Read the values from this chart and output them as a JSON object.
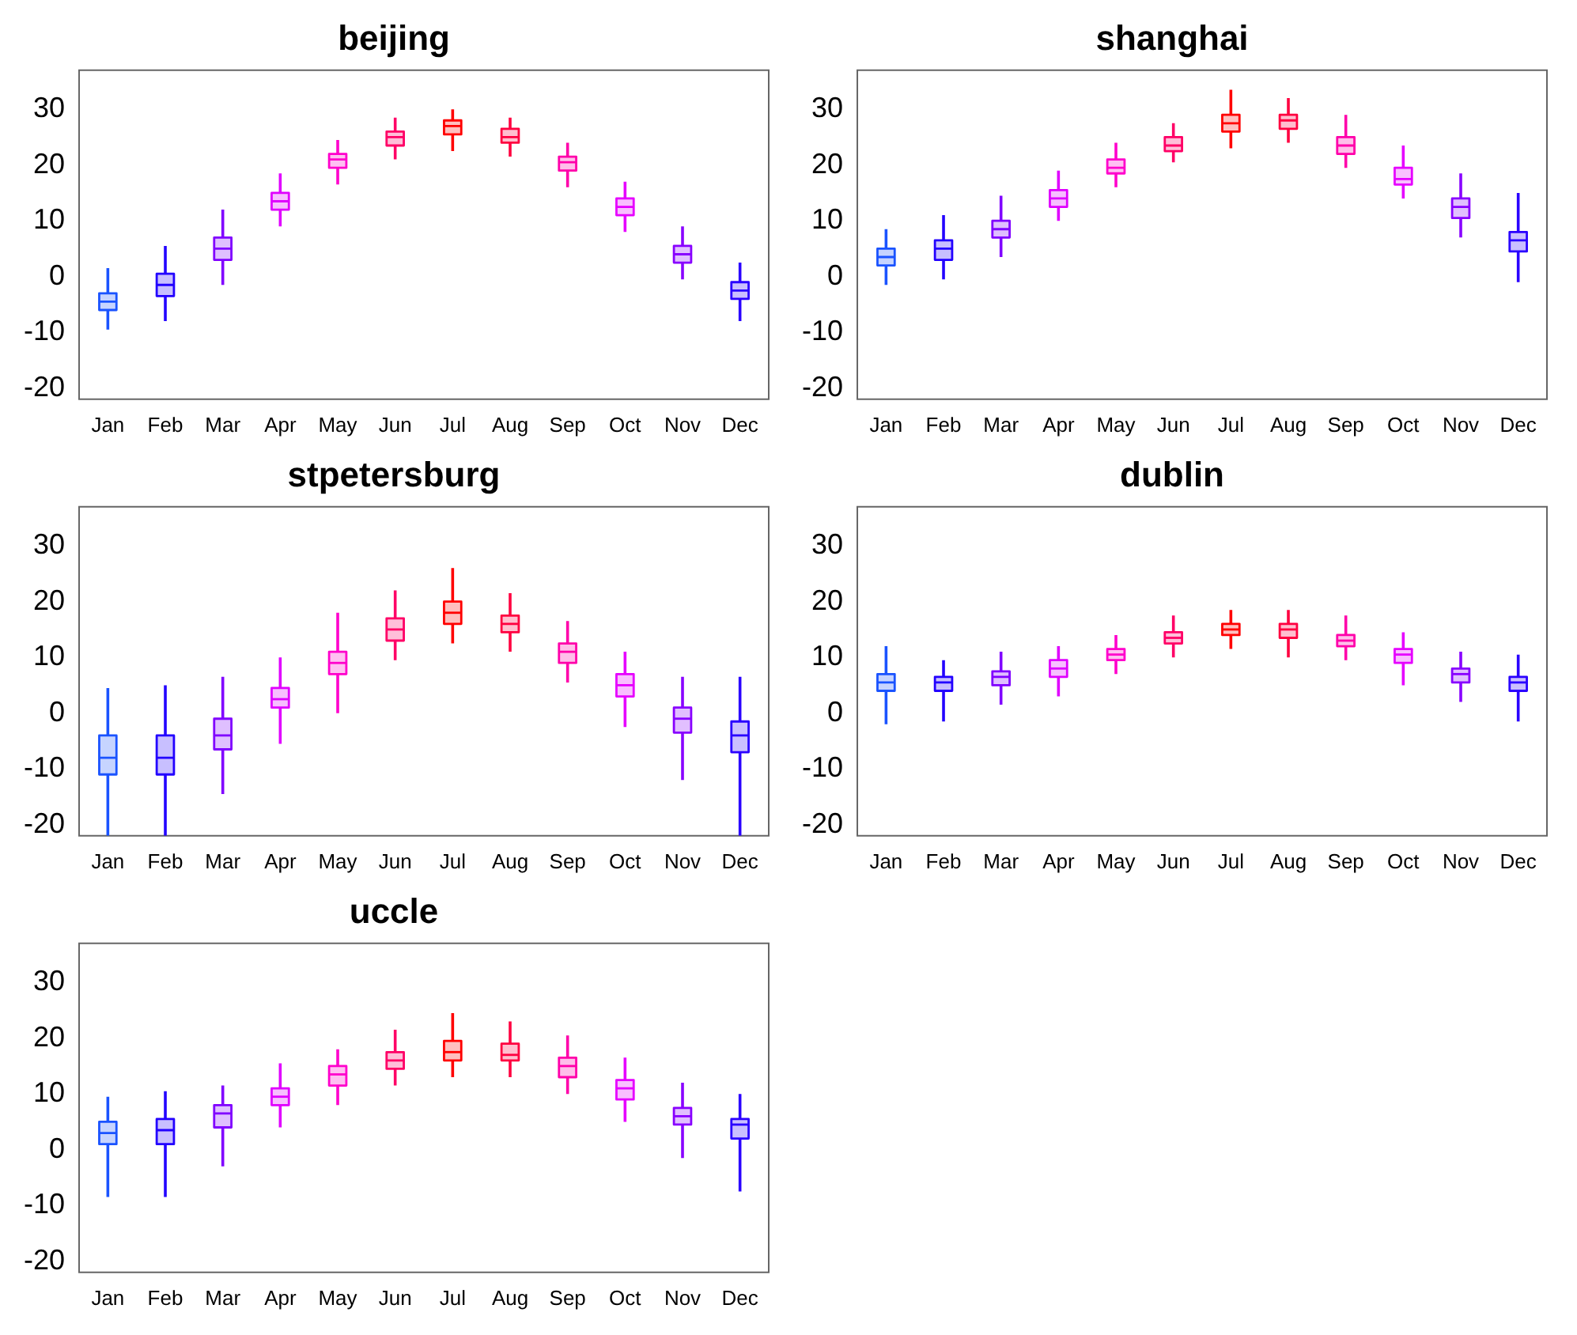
{
  "chart_data": [
    {
      "type": "box",
      "title": "beijing",
      "categories": [
        "Jan",
        "Feb",
        "Mar",
        "Apr",
        "May",
        "Jun",
        "Jul",
        "Aug",
        "Sep",
        "Oct",
        "Nov",
        "Dec"
      ],
      "colors": [
        "#1a53ff",
        "#2200ff",
        "#8000ff",
        "#e000ff",
        "#ff00cc",
        "#ff0066",
        "#ff0000",
        "#ff0040",
        "#ff00aa",
        "#e600ff",
        "#8800ff",
        "#2a00ff"
      ],
      "ylim": [
        -22,
        37
      ],
      "yticks": [
        -20,
        -10,
        0,
        10,
        20,
        30
      ],
      "grid": false,
      "boxes": [
        {
          "low": -9.5,
          "q1": -6,
          "median": -4.5,
          "q3": -3,
          "high": 1.5
        },
        {
          "low": -8,
          "q1": -3.5,
          "median": -1.5,
          "q3": 0.5,
          "high": 5.5
        },
        {
          "low": -1.5,
          "q1": 3,
          "median": 5,
          "q3": 7,
          "high": 12
        },
        {
          "low": 9,
          "q1": 12,
          "median": 13.5,
          "q3": 15,
          "high": 18.5
        },
        {
          "low": 16.5,
          "q1": 19.5,
          "median": 21,
          "q3": 22,
          "high": 24.5
        },
        {
          "low": 21,
          "q1": 23.5,
          "median": 25,
          "q3": 26,
          "high": 28.5
        },
        {
          "low": 22.5,
          "q1": 25.5,
          "median": 27,
          "q3": 28,
          "high": 30
        },
        {
          "low": 21.5,
          "q1": 24,
          "median": 25,
          "q3": 26.5,
          "high": 28.5
        },
        {
          "low": 16,
          "q1": 19,
          "median": 20.5,
          "q3": 21.5,
          "high": 24
        },
        {
          "low": 8,
          "q1": 11,
          "median": 12.5,
          "q3": 14,
          "high": 17
        },
        {
          "low": -0.5,
          "q1": 2.5,
          "median": 4,
          "q3": 5.5,
          "high": 9
        },
        {
          "low": -8,
          "q1": -4,
          "median": -2.5,
          "q3": -1,
          "high": 2.5
        }
      ]
    },
    {
      "type": "box",
      "title": "shanghai",
      "categories": [
        "Jan",
        "Feb",
        "Mar",
        "Apr",
        "May",
        "Jun",
        "Jul",
        "Aug",
        "Sep",
        "Oct",
        "Nov",
        "Dec"
      ],
      "colors": [
        "#1a53ff",
        "#2200ff",
        "#8000ff",
        "#e000ff",
        "#ff00cc",
        "#ff0066",
        "#ff0000",
        "#ff0040",
        "#ff00aa",
        "#e600ff",
        "#8800ff",
        "#2a00ff"
      ],
      "ylim": [
        -22,
        37
      ],
      "yticks": [
        -20,
        -10,
        0,
        10,
        20,
        30
      ],
      "grid": false,
      "boxes": [
        {
          "low": -1.5,
          "q1": 2,
          "median": 3.5,
          "q3": 5,
          "high": 8.5
        },
        {
          "low": -0.5,
          "q1": 3,
          "median": 5,
          "q3": 6.5,
          "high": 11
        },
        {
          "low": 3.5,
          "q1": 7,
          "median": 8.5,
          "q3": 10,
          "high": 14.5
        },
        {
          "low": 10,
          "q1": 12.5,
          "median": 14,
          "q3": 15.5,
          "high": 19
        },
        {
          "low": 16,
          "q1": 18.5,
          "median": 19.5,
          "q3": 21,
          "high": 24
        },
        {
          "low": 20.5,
          "q1": 22.5,
          "median": 23.5,
          "q3": 25,
          "high": 27.5
        },
        {
          "low": 23,
          "q1": 26,
          "median": 27.5,
          "q3": 29,
          "high": 33.5
        },
        {
          "low": 24,
          "q1": 26.5,
          "median": 28,
          "q3": 29,
          "high": 32
        },
        {
          "low": 19.5,
          "q1": 22,
          "median": 23.5,
          "q3": 25,
          "high": 29
        },
        {
          "low": 14,
          "q1": 16.5,
          "median": 17.5,
          "q3": 19.5,
          "high": 23.5
        },
        {
          "low": 7,
          "q1": 10.5,
          "median": 12.5,
          "q3": 14,
          "high": 18.5
        },
        {
          "low": -1,
          "q1": 4.5,
          "median": 6.5,
          "q3": 8,
          "high": 15
        }
      ]
    },
    {
      "type": "box",
      "title": "stpetersburg",
      "categories": [
        "Jan",
        "Feb",
        "Mar",
        "Apr",
        "May",
        "Jun",
        "Jul",
        "Aug",
        "Sep",
        "Oct",
        "Nov",
        "Dec"
      ],
      "colors": [
        "#1a53ff",
        "#2200ff",
        "#8000ff",
        "#e000ff",
        "#ff00cc",
        "#ff0066",
        "#ff0000",
        "#ff0040",
        "#ff00aa",
        "#e600ff",
        "#8800ff",
        "#2a00ff"
      ],
      "ylim": [
        -22,
        37
      ],
      "yticks": [
        -20,
        -10,
        0,
        10,
        20,
        30
      ],
      "grid": false,
      "boxes": [
        {
          "low": -22,
          "q1": -11,
          "median": -8,
          "q3": -4,
          "high": 4.5
        },
        {
          "low": -22,
          "q1": -11,
          "median": -8,
          "q3": -4,
          "high": 5
        },
        {
          "low": -14.5,
          "q1": -6.5,
          "median": -4,
          "q3": -1,
          "high": 6.5
        },
        {
          "low": -5.5,
          "q1": 1,
          "median": 2.5,
          "q3": 4.5,
          "high": 10
        },
        {
          "low": 0,
          "q1": 7,
          "median": 9,
          "q3": 11,
          "high": 18
        },
        {
          "low": 9.5,
          "q1": 13,
          "median": 15,
          "q3": 17,
          "high": 22
        },
        {
          "low": 12.5,
          "q1": 16,
          "median": 18,
          "q3": 20,
          "high": 26
        },
        {
          "low": 11,
          "q1": 14.5,
          "median": 16,
          "q3": 17.5,
          "high": 21.5
        },
        {
          "low": 5.5,
          "q1": 9,
          "median": 11,
          "q3": 12.5,
          "high": 16.5
        },
        {
          "low": -2.5,
          "q1": 3,
          "median": 5,
          "q3": 7,
          "high": 11
        },
        {
          "low": -12,
          "q1": -3.5,
          "median": -1,
          "q3": 1,
          "high": 6.5
        },
        {
          "low": -22,
          "q1": -7,
          "median": -4,
          "q3": -1.5,
          "high": 6.5
        }
      ]
    },
    {
      "type": "box",
      "title": "dublin",
      "categories": [
        "Jan",
        "Feb",
        "Mar",
        "Apr",
        "May",
        "Jun",
        "Jul",
        "Aug",
        "Sep",
        "Oct",
        "Nov",
        "Dec"
      ],
      "colors": [
        "#1a53ff",
        "#2200ff",
        "#8000ff",
        "#e000ff",
        "#ff00cc",
        "#ff0066",
        "#ff0000",
        "#ff0040",
        "#ff00aa",
        "#e600ff",
        "#8800ff",
        "#2a00ff"
      ],
      "ylim": [
        -22,
        37
      ],
      "yticks": [
        -20,
        -10,
        0,
        10,
        20,
        30
      ],
      "grid": false,
      "boxes": [
        {
          "low": -2,
          "q1": 4,
          "median": 5.5,
          "q3": 7,
          "high": 12
        },
        {
          "low": -1.5,
          "q1": 4,
          "median": 5.5,
          "q3": 6.5,
          "high": 9.5
        },
        {
          "low": 1.5,
          "q1": 5,
          "median": 6.5,
          "q3": 7.5,
          "high": 11
        },
        {
          "low": 3,
          "q1": 6.5,
          "median": 8,
          "q3": 9.5,
          "high": 12
        },
        {
          "low": 7,
          "q1": 9.5,
          "median": 10.5,
          "q3": 11.5,
          "high": 14
        },
        {
          "low": 10,
          "q1": 12.5,
          "median": 13.5,
          "q3": 14.5,
          "high": 17.5
        },
        {
          "low": 11.5,
          "q1": 14,
          "median": 15,
          "q3": 16,
          "high": 18.5
        },
        {
          "low": 10,
          "q1": 13.5,
          "median": 15,
          "q3": 16,
          "high": 18.5
        },
        {
          "low": 9.5,
          "q1": 12,
          "median": 13,
          "q3": 14,
          "high": 17.5
        },
        {
          "low": 5,
          "q1": 9,
          "median": 10.5,
          "q3": 11.5,
          "high": 14.5
        },
        {
          "low": 2,
          "q1": 5.5,
          "median": 7,
          "q3": 8,
          "high": 11
        },
        {
          "low": -1.5,
          "q1": 4,
          "median": 5.5,
          "q3": 6.5,
          "high": 10.5
        }
      ]
    },
    {
      "type": "box",
      "title": "uccle",
      "categories": [
        "Jan",
        "Feb",
        "Mar",
        "Apr",
        "May",
        "Jun",
        "Jul",
        "Aug",
        "Sep",
        "Oct",
        "Nov",
        "Dec"
      ],
      "colors": [
        "#1a53ff",
        "#2200ff",
        "#8000ff",
        "#e000ff",
        "#ff00cc",
        "#ff0066",
        "#ff0000",
        "#ff0040",
        "#ff00aa",
        "#e600ff",
        "#8800ff",
        "#2a00ff"
      ],
      "ylim": [
        -22,
        37
      ],
      "yticks": [
        -20,
        -10,
        0,
        10,
        20,
        30
      ],
      "grid": false,
      "boxes": [
        {
          "low": -8.5,
          "q1": 1,
          "median": 3,
          "q3": 5,
          "high": 9.5
        },
        {
          "low": -8.5,
          "q1": 1,
          "median": 3.5,
          "q3": 5.5,
          "high": 10.5
        },
        {
          "low": -3,
          "q1": 4,
          "median": 6.5,
          "q3": 8,
          "high": 11.5
        },
        {
          "low": 4,
          "q1": 8,
          "median": 9.5,
          "q3": 11,
          "high": 15.5
        },
        {
          "low": 8,
          "q1": 11.5,
          "median": 13.5,
          "q3": 15,
          "high": 18
        },
        {
          "low": 11.5,
          "q1": 14.5,
          "median": 16,
          "q3": 17.5,
          "high": 21.5
        },
        {
          "low": 13,
          "q1": 16,
          "median": 17.5,
          "q3": 19.5,
          "high": 24.5
        },
        {
          "low": 13,
          "q1": 16,
          "median": 17,
          "q3": 19,
          "high": 23
        },
        {
          "low": 10,
          "q1": 13,
          "median": 15,
          "q3": 16.5,
          "high": 20.5
        },
        {
          "low": 5,
          "q1": 9,
          "median": 11,
          "q3": 12.5,
          "high": 16.5
        },
        {
          "low": -1.5,
          "q1": 4.5,
          "median": 6,
          "q3": 7.5,
          "high": 12
        },
        {
          "low": -7.5,
          "q1": 2,
          "median": 4.5,
          "q3": 5.5,
          "high": 10
        }
      ]
    }
  ]
}
